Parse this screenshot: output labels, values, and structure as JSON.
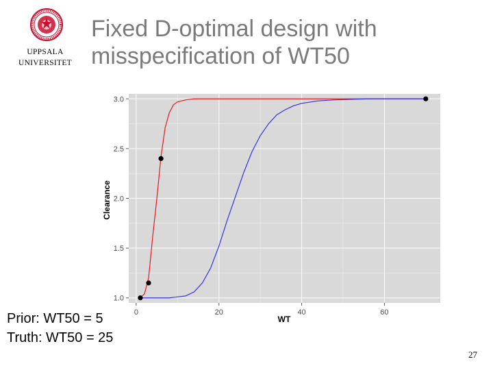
{
  "logo": {
    "line1": "UPPSALA",
    "line2": "UNIVERSITET",
    "seal_color": "#c8102e",
    "icon": "university-seal-icon"
  },
  "slide": {
    "title_line1": "Fixed D-optimal design with",
    "title_line2": "misspecification of WT50",
    "page_number": "27"
  },
  "notes": {
    "prior": "Prior: WT50 = 5",
    "truth": "Truth: WT50 = 25"
  },
  "chart_data": {
    "type": "line",
    "xlabel": "WT",
    "ylabel": "Clearance",
    "xlim": [
      -1.8,
      73.5
    ],
    "ylim": [
      0.95,
      3.05
    ],
    "xticks": [
      0,
      20,
      40,
      60
    ],
    "yticks": [
      1.0,
      1.5,
      2.0,
      2.5,
      3.0
    ],
    "xtick_labels": [
      "0",
      "20",
      "40",
      "60"
    ],
    "ytick_labels": [
      "1.0",
      "1.5",
      "2.0",
      "2.5",
      "3.0"
    ],
    "grid": true,
    "panel_color": "#d9d9d9",
    "series": [
      {
        "color": "#e41a1c",
        "x": [
          1,
          2,
          3,
          4,
          5,
          6,
          7,
          8,
          9,
          10,
          12,
          14,
          17,
          20,
          30,
          40,
          50,
          60,
          70
        ],
        "y": [
          1.0,
          1.04,
          1.2,
          1.62,
          2.0,
          2.42,
          2.71,
          2.86,
          2.94,
          2.97,
          2.99,
          3.0,
          3.0,
          3.0,
          3.0,
          3.0,
          3.0,
          3.0,
          3.0
        ]
      },
      {
        "color": "#3333dd",
        "x": [
          1,
          5,
          8,
          10,
          12,
          14,
          16,
          18,
          20,
          22,
          24,
          26,
          28,
          30,
          32,
          34,
          36,
          38,
          40,
          44,
          48,
          52,
          56,
          60,
          65,
          70
        ],
        "y": [
          1.0,
          1.0,
          1.0,
          1.01,
          1.02,
          1.06,
          1.15,
          1.3,
          1.52,
          1.78,
          2.02,
          2.26,
          2.47,
          2.63,
          2.75,
          2.84,
          2.89,
          2.93,
          2.955,
          2.98,
          2.99,
          2.995,
          3.0,
          3.0,
          3.0,
          3.0
        ]
      }
    ],
    "design_points": {
      "x": [
        1,
        3,
        6,
        70
      ],
      "y": [
        1.0,
        1.15,
        2.4,
        3.0
      ]
    }
  }
}
